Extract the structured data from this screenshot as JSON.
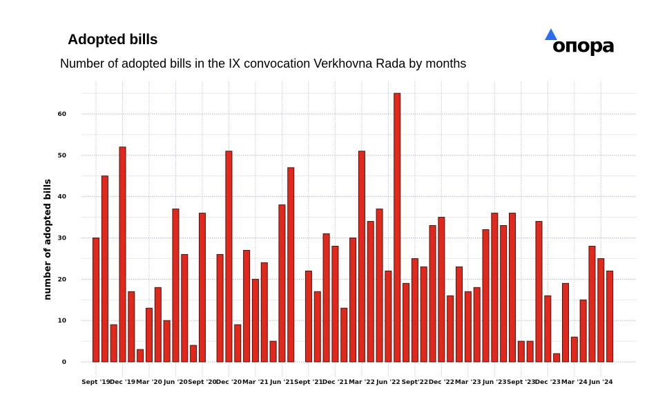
{
  "header": {
    "title": "Adopted bills",
    "subtitle": "Number of adopted bills in the IX convocation Verkhovna Rada by months",
    "logo_text": "опора",
    "logo_icon": "blue-triangle-icon",
    "logo_color": "#2b6cf0"
  },
  "chart_data": {
    "type": "bar",
    "title": "Adopted bills",
    "subtitle": "Number of adopted bills in the IX convocation Verkhovna Rada by months",
    "xlabel": "",
    "ylabel": "number of adopted bills",
    "ylim": [
      0,
      67
    ],
    "yticks": [
      0,
      10,
      20,
      30,
      40,
      50,
      60
    ],
    "grid": true,
    "bar_color": "#e0281c",
    "bar_edge_color": "#4a1510",
    "categories": [
      "Sept '19",
      "Oct '19",
      "Nov '19",
      "Dec '19",
      "Jan '20",
      "Feb '20",
      "Mar '20",
      "Apr '20",
      "May '20",
      "Jun '20",
      "Jul '20",
      "Aug '20",
      "Sept '20",
      "Oct '20",
      "Nov '20",
      "Dec '20",
      "Jan '21",
      "Feb '21",
      "Mar '21",
      "Apr '21",
      "May '21",
      "Jun '21",
      "Jul '21",
      "Aug '21",
      "Sept '21",
      "Oct '21",
      "Nov '21",
      "Dec '21",
      "Jan '22",
      "Feb '22",
      "Mar '22",
      "Apr '22",
      "May '22",
      "Jun '22",
      "Jul '22",
      "Aug '22",
      "Sept '22",
      "Oct '22",
      "Nov '22",
      "Dec '22",
      "Jan '23",
      "Feb '23",
      "Mar '23",
      "Apr '23",
      "May '23",
      "Jun '23",
      "Jul '23",
      "Aug '23",
      "Sept '23",
      "Oct '23",
      "Nov '23",
      "Dec '23",
      "Jan '24",
      "Feb '24",
      "Mar '24",
      "Apr '24",
      "May '24",
      "Jun '24",
      "Jul '24"
    ],
    "values": [
      30,
      45,
      9,
      52,
      17,
      3,
      13,
      18,
      10,
      37,
      26,
      4,
      36,
      0,
      26,
      51,
      9,
      27,
      20,
      24,
      5,
      38,
      47,
      0,
      22,
      17,
      31,
      28,
      13,
      30,
      51,
      34,
      37,
      22,
      65,
      19,
      25,
      23,
      33,
      35,
      16,
      23,
      17,
      18,
      32,
      36,
      33,
      36,
      5,
      5,
      34,
      16,
      2,
      19,
      6,
      15,
      28,
      25,
      22
    ],
    "xtick_labels": [
      {
        "index": 0,
        "label": "Sept '19"
      },
      {
        "index": 3,
        "label": "Dec '19"
      },
      {
        "index": 6,
        "label": "Mar '20"
      },
      {
        "index": 9,
        "label": "Jun '20"
      },
      {
        "index": 12,
        "label": "Sept '20"
      },
      {
        "index": 15,
        "label": "Dec '20"
      },
      {
        "index": 18,
        "label": "Mar '21"
      },
      {
        "index": 21,
        "label": "Jun '21"
      },
      {
        "index": 24,
        "label": "Sept '21"
      },
      {
        "index": 27,
        "label": "Dec '21"
      },
      {
        "index": 30,
        "label": "Mar '22"
      },
      {
        "index": 33,
        "label": "Jun '22"
      },
      {
        "index": 36,
        "label": "Sept'22"
      },
      {
        "index": 39,
        "label": "Dec '22"
      },
      {
        "index": 42,
        "label": "Mar '23"
      },
      {
        "index": 45,
        "label": "Jun '23"
      },
      {
        "index": 48,
        "label": "Sept '23"
      },
      {
        "index": 51,
        "label": "Dec '23"
      },
      {
        "index": 54,
        "label": "Mar '24"
      },
      {
        "index": 57,
        "label": "Jun '24"
      }
    ]
  }
}
